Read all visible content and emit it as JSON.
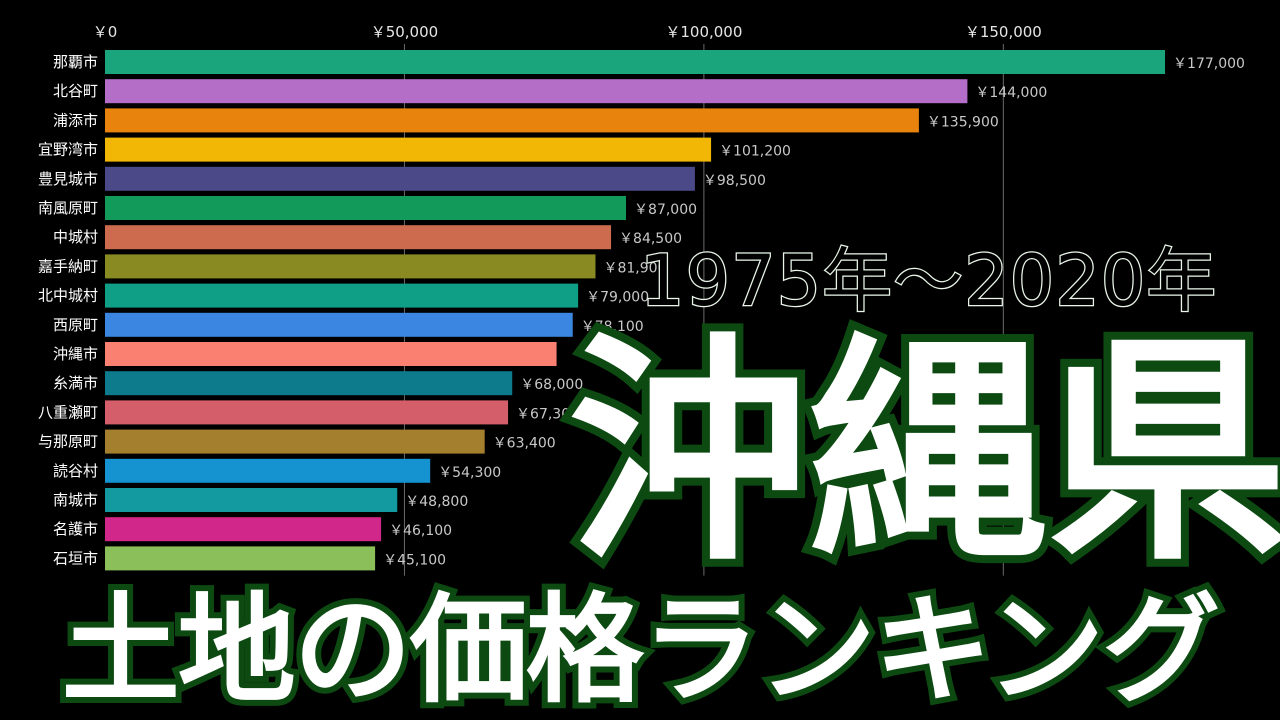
{
  "chart_data": {
    "type": "bar",
    "orientation": "horizontal",
    "xlim": [
      0,
      180000
    ],
    "xticks": [
      {
        "value": 0,
        "label": "￥0"
      },
      {
        "value": 50000,
        "label": "￥50,000"
      },
      {
        "value": 100000,
        "label": "￥100,000"
      },
      {
        "value": 150000,
        "label": "￥150,000"
      }
    ],
    "grid": true,
    "categories": [
      "那覇市",
      "北谷町",
      "浦添市",
      "宜野湾市",
      "豊見城市",
      "南風原町",
      "中城村",
      "嘉手納町",
      "北中城村",
      "西原町",
      "沖縄市",
      "糸満市",
      "八重瀬町",
      "与那原町",
      "読谷村",
      "南城市",
      "名護市",
      "石垣市"
    ],
    "values": [
      177000,
      144000,
      135900,
      101200,
      98500,
      87000,
      84500,
      81900,
      79000,
      78100,
      75400,
      68000,
      67300,
      63400,
      54300,
      48800,
      46100,
      45100
    ],
    "value_labels": [
      "￥177,000",
      "￥144,000",
      "￥135,900",
      "￥101,200",
      "￥98,500",
      "￥87,000",
      "￥84,500",
      "￥81,900",
      "￥79,000",
      "￥78,100",
      "",
      "￥68,000",
      "￥67,300",
      "￥63,400",
      "￥54,300",
      "￥48,800",
      "￥46,100",
      "￥45,100"
    ],
    "colors": [
      "#1aa57c",
      "#b56ec7",
      "#e8840e",
      "#f2b705",
      "#4b4987",
      "#129a5a",
      "#cc6b4e",
      "#8a8a22",
      "#0f9f86",
      "#3a86e0",
      "#fa8072",
      "#0e7b8c",
      "#d45f6a",
      "#a37f2e",
      "#1592d0",
      "#139aa0",
      "#d1278a",
      "#8abf5a"
    ]
  },
  "overlay": {
    "period": "1975年〜2020年",
    "prefecture": "沖縄県",
    "title": "土地の価格ランキング"
  }
}
